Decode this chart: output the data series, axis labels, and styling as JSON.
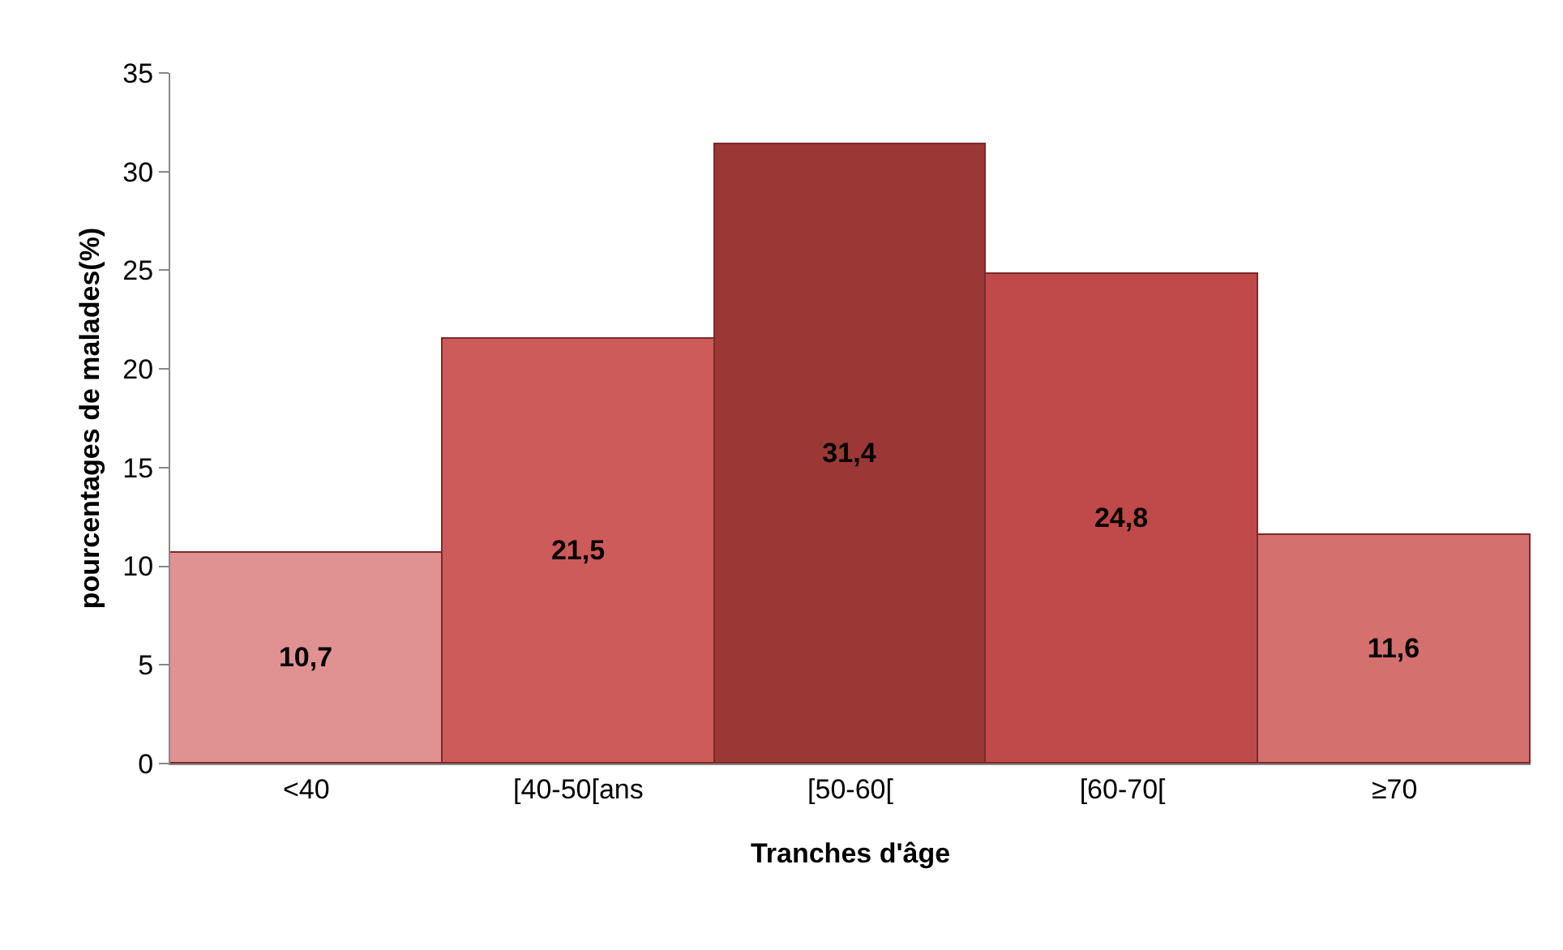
{
  "chart_data": {
    "type": "bar",
    "xlabel": "Tranches d'âge",
    "ylabel": "pourcentages de malades(%)",
    "categories": [
      "<40",
      "[40-50[ans",
      "[50-60[",
      "[60-70[",
      "≥70"
    ],
    "values": [
      10.7,
      21.5,
      31.4,
      24.8,
      11.6
    ],
    "colors": [
      "#e09292",
      "#cd5b59",
      "#9b3836",
      "#bf4a49",
      "#d4706d"
    ],
    "value_labels": [
      "10,7",
      "21,5",
      "31,4",
      "24,8",
      "11,6"
    ],
    "ylim": [
      0,
      35
    ],
    "yticks": [
      0,
      5,
      10,
      15,
      20,
      25,
      30,
      35
    ],
    "grid": false
  }
}
